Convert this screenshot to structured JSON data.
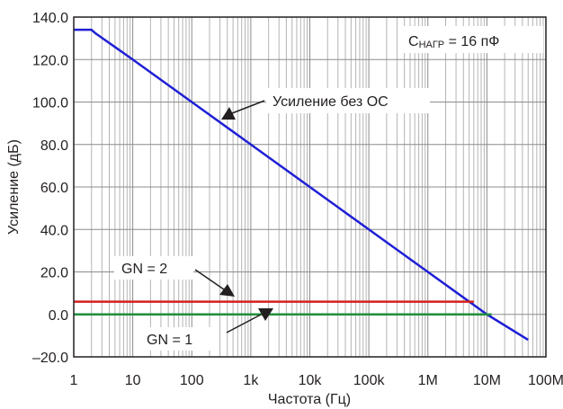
{
  "chart_data": {
    "type": "line",
    "xscale": "log",
    "xlim": [
      1,
      100000000
    ],
    "ylim": [
      -20,
      140
    ],
    "grid": true,
    "xlabel": "Частота (Гц)",
    "ylabel": "Усиление (дБ)",
    "x_ticks": [
      {
        "value": 1,
        "label": "1"
      },
      {
        "value": 10,
        "label": "10"
      },
      {
        "value": 100,
        "label": "100"
      },
      {
        "value": 1000,
        "label": "1k"
      },
      {
        "value": 10000,
        "label": "10k"
      },
      {
        "value": 100000,
        "label": "100k"
      },
      {
        "value": 1000000,
        "label": "1M"
      },
      {
        "value": 10000000,
        "label": "10M"
      },
      {
        "value": 100000000,
        "label": "100M"
      }
    ],
    "y_ticks": [
      {
        "value": 140,
        "label": "140.0"
      },
      {
        "value": 120,
        "label": "120.0"
      },
      {
        "value": 100,
        "label": "100.0"
      },
      {
        "value": 80,
        "label": "80.0"
      },
      {
        "value": 60,
        "label": "60.0"
      },
      {
        "value": 40,
        "label": "40.0"
      },
      {
        "value": 20,
        "label": "20.0"
      },
      {
        "value": 0,
        "label": "0.0"
      },
      {
        "value": -20,
        "label": "–20.0"
      }
    ],
    "series": [
      {
        "name": "Усиление без ОС",
        "color": "#1f1fd6",
        "x": [
          1,
          2,
          2.3,
          10,
          100,
          1000,
          10000,
          100000,
          1000000,
          10000000,
          50000000
        ],
        "y": [
          134,
          134,
          132.5,
          120,
          100,
          80,
          60,
          40,
          20,
          0,
          -12
        ]
      },
      {
        "name": "GN = 2",
        "color": "#d42020",
        "x": [
          1,
          6000000
        ],
        "y": [
          6.0,
          6.0
        ]
      },
      {
        "name": "GN = 1",
        "color": "#1e8f3c",
        "x": [
          1,
          12000000
        ],
        "y": [
          0,
          0
        ]
      }
    ],
    "annotations": {
      "condition": {
        "main": "C",
        "sub": "НАГР",
        "rest": " = 16 пФ"
      },
      "open_loop": {
        "text": "Усиление без ОС",
        "x": 400,
        "y": 92
      },
      "gn2": {
        "text": "GN = 2",
        "x": 600,
        "y": 6
      },
      "gn1": {
        "text": "GN = 1",
        "x": 1000,
        "y": 0
      }
    }
  }
}
